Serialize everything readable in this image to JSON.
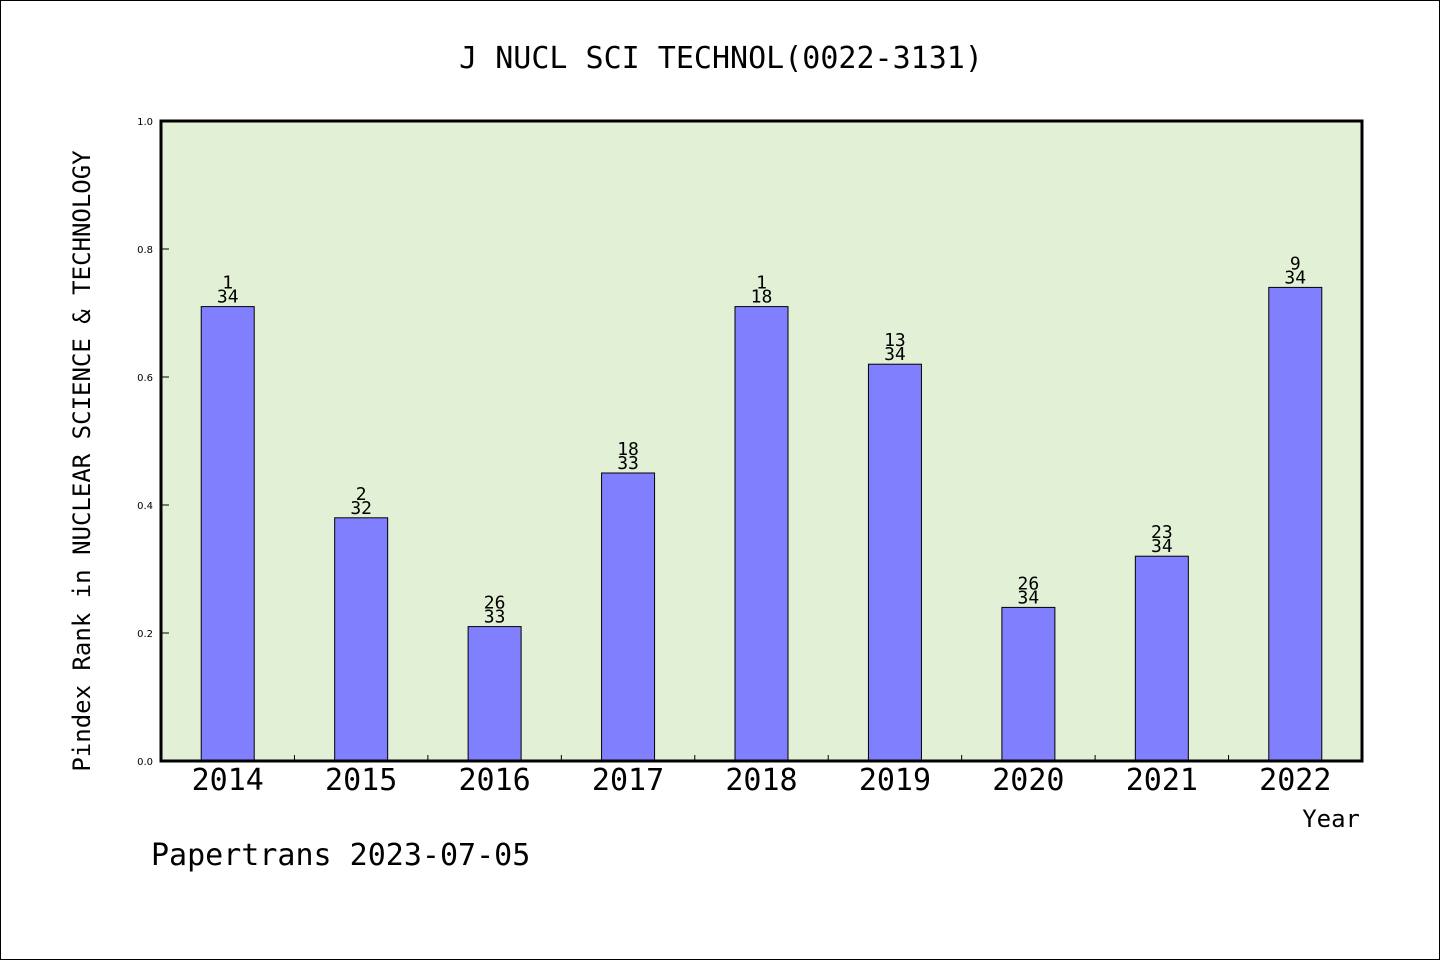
{
  "chart_data": {
    "type": "bar",
    "title": "J NUCL SCI TECHNOL(0022-3131)",
    "xlabel": "Year",
    "ylabel": "Pindex Rank in NUCLEAR SCIENCE & TECHNOLOGY",
    "ylim": [
      0,
      1.0
    ],
    "yticks": [
      "0.0",
      "0.2",
      "0.4",
      "0.6",
      "0.8",
      "1.0"
    ],
    "categories": [
      "2014",
      "2015",
      "2016",
      "2017",
      "2018",
      "2019",
      "2020",
      "2021",
      "2022"
    ],
    "values": [
      0.71,
      0.38,
      0.21,
      0.45,
      0.71,
      0.62,
      0.24,
      0.32,
      0.74
    ],
    "rank_labels": [
      {
        "rank": "1",
        "total": "34"
      },
      {
        "rank": "2",
        "total": "32"
      },
      {
        "rank": "26",
        "total": "33"
      },
      {
        "rank": "18",
        "total": "33"
      },
      {
        "rank": "1",
        "total": "18"
      },
      {
        "rank": "13",
        "total": "34"
      },
      {
        "rank": "26",
        "total": "34"
      },
      {
        "rank": "23",
        "total": "34"
      },
      {
        "rank": "9",
        "total": "34"
      }
    ],
    "grid": false,
    "colors": {
      "plot_background": "#e2f0d6",
      "bar_fill": "#8080ff",
      "bar_stroke": "#000000",
      "axis": "#000000"
    }
  },
  "footer": {
    "credit": "Papertrans 2023-07-05"
  }
}
